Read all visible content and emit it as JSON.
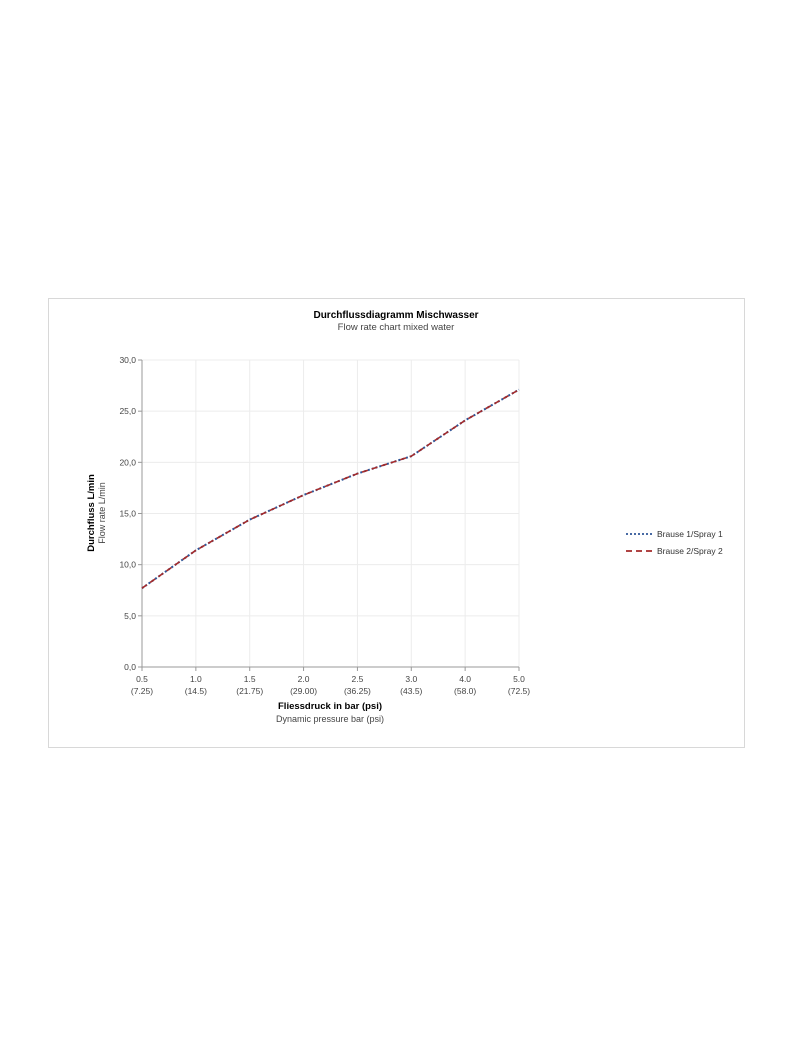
{
  "chart_data": {
    "type": "line",
    "title": "Durchflussdiagramm Mischwasser",
    "subtitle": "Flow rate chart mixed water",
    "xlabel": "Fliessdruck in bar (psi)",
    "xlabel_sub": "Dynamic pressure bar (psi)",
    "ylabel": "Durchfluss L/min",
    "ylabel_sub": "Flow rate L/min",
    "categories": [
      "0.5",
      "1.0",
      "1.5",
      "2.0",
      "2.5",
      "3.0",
      "4.0",
      "5.0"
    ],
    "categories_sub": [
      "(7.25)",
      "(14.5)",
      "(21.75)",
      "(29.00)",
      "(36.25)",
      "(43.5)",
      "(58.0)",
      "(72.5)"
    ],
    "ylim": [
      0,
      30
    ],
    "yticks": [
      "0,0",
      "5,0",
      "10,0",
      "15,0",
      "20,0",
      "25,0",
      "30,0"
    ],
    "grid": true,
    "legend_position": "right",
    "series": [
      {
        "name": "Brause 1/Spray 1",
        "color": "#2f5597",
        "dash": "dotted",
        "values": [
          7.7,
          11.4,
          14.4,
          16.8,
          18.9,
          20.6,
          24.1,
          27.1
        ]
      },
      {
        "name": "Brause 2/Spray 2",
        "color": "#a52a2a",
        "dash": "dashed",
        "values": [
          7.7,
          11.4,
          14.4,
          16.8,
          18.9,
          20.6,
          24.1,
          27.1
        ]
      }
    ]
  }
}
